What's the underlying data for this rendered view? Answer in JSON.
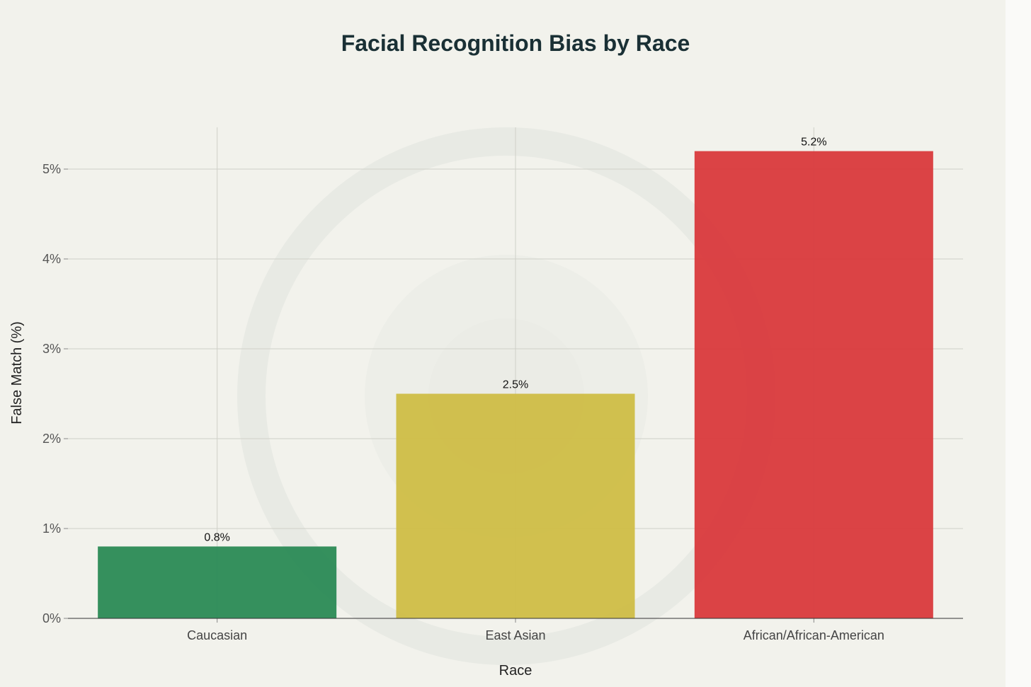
{
  "chart_data": {
    "type": "bar",
    "title": "Facial Recognition Bias by Race",
    "xlabel": "Race",
    "ylabel": "False Match (%)",
    "categories": [
      "Caucasian",
      "East Asian",
      "African/African-American"
    ],
    "values": [
      0.8,
      2.5,
      5.2
    ],
    "value_labels": [
      "0.8%",
      "2.5%",
      "5.2%"
    ],
    "bar_colors": [
      "#2a8a55",
      "#cfbd46",
      "#d9393c"
    ],
    "ylim": [
      0,
      5.5
    ],
    "yticks": [
      0,
      1,
      2,
      3,
      4,
      5
    ],
    "ytick_labels": [
      "0%",
      "1%",
      "2%",
      "3%",
      "4%",
      "5%"
    ],
    "grid": true
  }
}
